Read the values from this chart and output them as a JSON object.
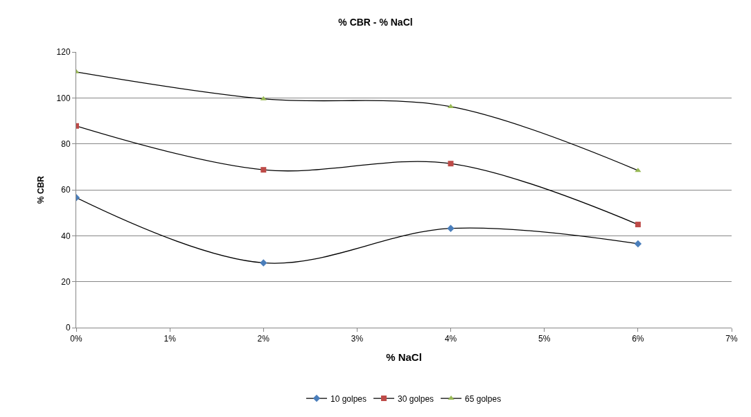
{
  "chart_data": {
    "type": "line",
    "title": "% CBR - % NaCl",
    "xlabel": "% NaCl",
    "ylabel": "% CBR",
    "x": [
      0,
      2,
      4,
      6
    ],
    "series": [
      {
        "name": "10 golpes",
        "color": "#4a7ebb",
        "marker": "diamond",
        "values": [
          56.6,
          28.2,
          43.2,
          36.5
        ]
      },
      {
        "name": "30 golpes",
        "color": "#be4b48",
        "marker": "square",
        "values": [
          87.8,
          68.7,
          71.4,
          44.9
        ]
      },
      {
        "name": "65 golpes",
        "color": "#98b954",
        "marker": "triangle",
        "values": [
          111.3,
          99.6,
          96.2,
          68.4
        ]
      }
    ],
    "xlim": [
      0,
      7
    ],
    "xticks": [
      {
        "value": 0,
        "label": "0%"
      },
      {
        "value": 1,
        "label": "1%"
      },
      {
        "value": 2,
        "label": "2%"
      },
      {
        "value": 3,
        "label": "3%"
      },
      {
        "value": 4,
        "label": "4%"
      },
      {
        "value": 5,
        "label": "5%"
      },
      {
        "value": 6,
        "label": "6%"
      },
      {
        "value": 7,
        "label": "7%"
      }
    ],
    "ylim": [
      0,
      120
    ],
    "yticks": [
      0,
      20,
      40,
      60,
      80,
      100,
      120
    ],
    "grid": "y",
    "legend": "bottom",
    "line_style": "solid"
  }
}
